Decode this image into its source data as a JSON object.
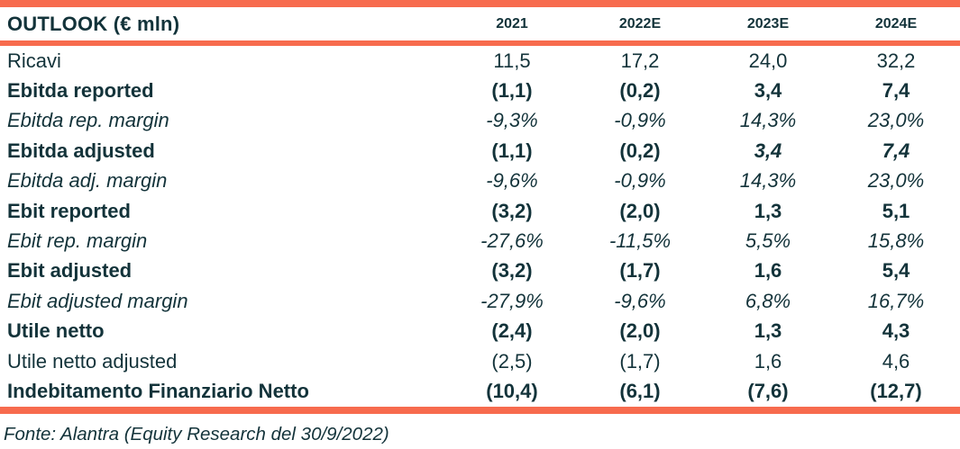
{
  "colors": {
    "accent_salmon": "#F76B4E",
    "text_dark_teal": "#13333A"
  },
  "table": {
    "header": {
      "label": "OUTLOOK (€ mln)",
      "columns": [
        "2021",
        "2022E",
        "2023E",
        "2024E"
      ]
    },
    "rows": [
      {
        "label": "Ricavi",
        "style": "regular",
        "values": [
          "11,5",
          "17,2",
          "24,0",
          "32,2"
        ]
      },
      {
        "label": "Ebitda reported",
        "style": "bold",
        "values": [
          "(1,1)",
          "(0,2)",
          "3,4",
          "7,4"
        ]
      },
      {
        "label": "Ebitda rep. margin",
        "style": "italic",
        "values": [
          "-9,3%",
          "-0,9%",
          "14,3%",
          "23,0%"
        ]
      },
      {
        "label": "Ebitda adjusted",
        "style": "bold",
        "values": [
          "(1,1)",
          "(0,2)",
          "3,4",
          "7,4"
        ],
        "value_styles": [
          "bold",
          "bold",
          "bold-italic",
          "bold-italic"
        ]
      },
      {
        "label": "Ebitda adj. margin",
        "style": "italic",
        "values": [
          "-9,6%",
          "-0,9%",
          "14,3%",
          "23,0%"
        ]
      },
      {
        "label": "Ebit reported",
        "style": "bold",
        "values": [
          "(3,2)",
          "(2,0)",
          "1,3",
          "5,1"
        ]
      },
      {
        "label": "Ebit rep. margin",
        "style": "italic",
        "values": [
          "-27,6%",
          "-11,5%",
          "5,5%",
          "15,8%"
        ]
      },
      {
        "label": "Ebit adjusted",
        "style": "bold",
        "values": [
          "(3,2)",
          "(1,7)",
          "1,6",
          "5,4"
        ]
      },
      {
        "label": "Ebit adjusted margin",
        "style": "italic",
        "values": [
          "-27,9%",
          "-9,6%",
          "6,8%",
          "16,7%"
        ]
      },
      {
        "label": "Utile netto",
        "style": "bold",
        "values": [
          "(2,4)",
          "(2,0)",
          "1,3",
          "4,3"
        ]
      },
      {
        "label": "Utile netto adjusted",
        "style": "regular",
        "values": [
          "(2,5)",
          "(1,7)",
          "1,6",
          "4,6"
        ]
      },
      {
        "label": "Indebitamento Finanziario Netto",
        "style": "bold",
        "values": [
          "(10,4)",
          "(6,1)",
          "(7,6)",
          "(12,7)"
        ]
      }
    ],
    "footer": "Fonte: Alantra (Equity Research del 30/9/2022)"
  }
}
